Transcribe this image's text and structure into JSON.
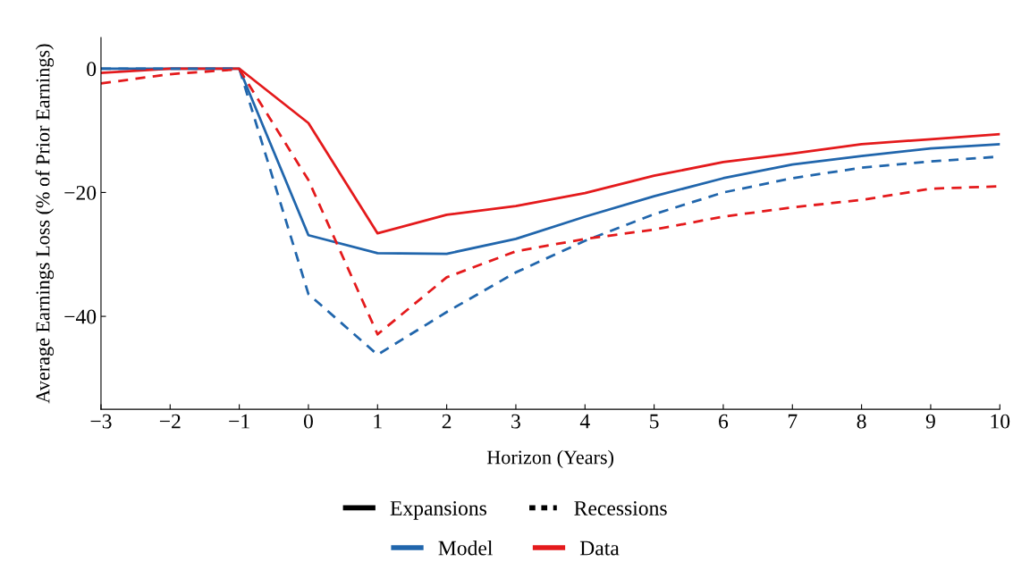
{
  "chart_data": {
    "type": "line",
    "xlabel": "Horizon (Years)",
    "ylabel": "Average Earnings Loss (% of Prior Earnings)",
    "x": [
      -3,
      -2,
      -1,
      0,
      1,
      2,
      3,
      4,
      5,
      6,
      7,
      8,
      9,
      10
    ],
    "xlim": [
      -3,
      10
    ],
    "xticks": [
      -3,
      -2,
      -1,
      0,
      1,
      2,
      3,
      4,
      5,
      6,
      7,
      8,
      9,
      10
    ],
    "ylim": [
      -55,
      5
    ],
    "yticks": [
      -40,
      -20,
      0
    ],
    "grid": false,
    "legend": "bottom",
    "marker": "none",
    "annotations": [
      "Expansions",
      "Recessions"
    ],
    "series": [
      {
        "name": "Model",
        "color": "#2166ac",
        "line_style": "solid",
        "values": [
          0,
          0,
          0,
          -26.9,
          -29.8,
          -29.9,
          -27.5,
          -23.9,
          -20.6,
          -17.7,
          -15.5,
          -14.1,
          -12.9,
          -12.2
        ]
      },
      {
        "name": "Data",
        "color": "#e41a1c",
        "line_style": "solid",
        "values": [
          -0.7,
          0,
          0,
          -8.8,
          -26.6,
          -23.6,
          -22.2,
          -20.1,
          -17.3,
          -15.1,
          -13.7,
          -12.2,
          -11.4,
          -10.6
        ]
      },
      {
        "color": "#2166ac",
        "line_style": "dashed",
        "values": [
          0,
          0,
          0,
          -36.4,
          -46.2,
          -39.3,
          -32.9,
          -27.8,
          -23.5,
          -20.0,
          -17.7,
          -16.0,
          -15.0,
          -14.2
        ]
      },
      {
        "color": "#e41a1c",
        "line_style": "dashed",
        "values": [
          -2.4,
          -0.9,
          -0.1,
          -18.0,
          -42.9,
          -33.7,
          -29.5,
          -27.5,
          -26.0,
          -23.9,
          -22.4,
          -21.2,
          -19.4,
          -19.0
        ]
      }
    ]
  }
}
